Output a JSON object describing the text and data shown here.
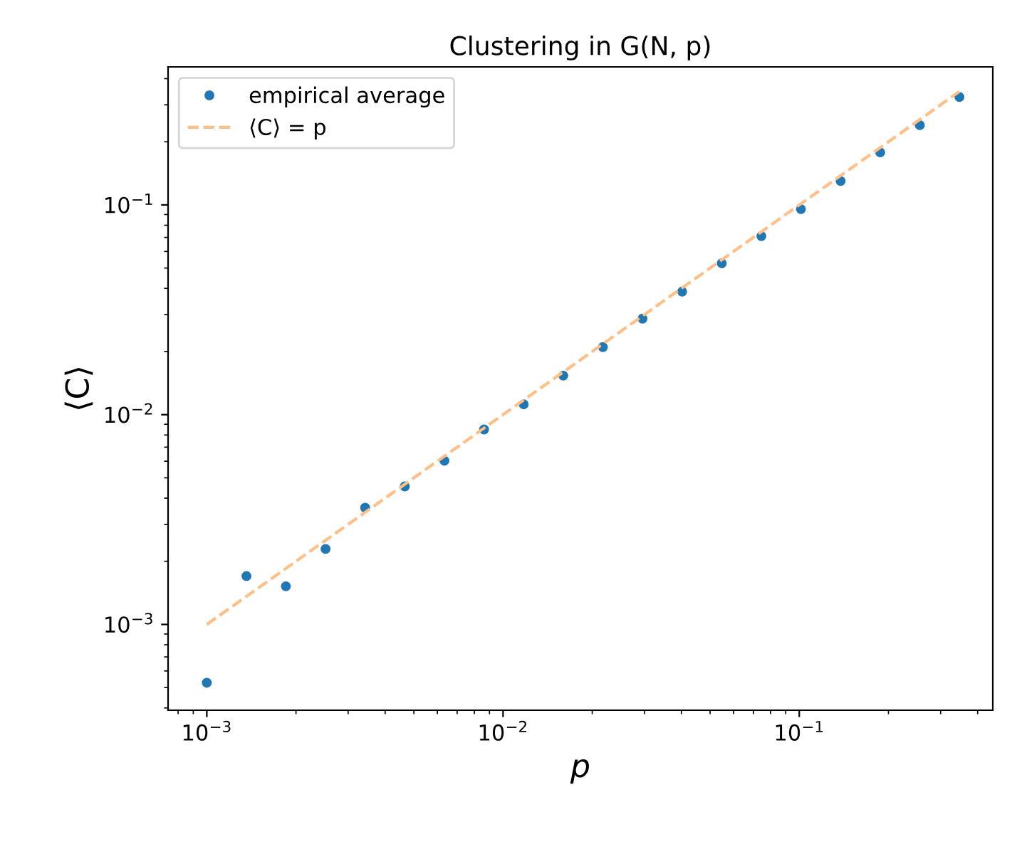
{
  "chart_data": {
    "type": "scatter",
    "title": "Clustering in G(N, p)",
    "xlabel": "p",
    "ylabel": "⟨C⟩",
    "log": "xy",
    "grid": false,
    "legend": "top left",
    "marker": "circle",
    "xlim": [
      0.00074,
      0.45
    ],
    "ylim": [
      0.00039,
      0.455
    ],
    "xticks": [
      {
        "value": 0.001,
        "label": "10$^{−3}$"
      },
      {
        "value": 0.01,
        "label": "10$^{−2}$"
      },
      {
        "value": 0.1,
        "label": "10$^{−1}$"
      }
    ],
    "yticks": [
      {
        "value": 0.001,
        "label": "10$^{−3}$"
      },
      {
        "value": 0.01,
        "label": "10$^{−2}$"
      },
      {
        "value": 0.1,
        "label": "10$^{−1}$"
      }
    ],
    "series": [
      {
        "name": "empirical average",
        "color": "#1f77b4",
        "x": [
          0.001,
          0.001361,
          0.001849,
          0.002517,
          0.003424,
          0.004659,
          0.006339,
          0.008626,
          0.01174,
          0.01597,
          0.02173,
          0.02957,
          0.04023,
          0.05474,
          0.07448,
          0.1013,
          0.1379,
          0.1876,
          0.2552,
          0.3472
        ],
        "values": [
          0.000527,
          0.0017,
          0.00152,
          0.00229,
          0.0036,
          0.00455,
          0.00603,
          0.0085,
          0.0112,
          0.01535,
          0.021,
          0.0287,
          0.0386,
          0.0527,
          0.071,
          0.0955,
          0.13,
          0.178,
          0.24,
          0.327
        ]
      },
      {
        "name": "⟨C⟩ = p",
        "type": "line",
        "color": "#ffbf86",
        "line_style": "dashed",
        "marker": "none",
        "x": [
          0.001,
          0.3472
        ],
        "values": [
          0.001,
          0.3472
        ]
      }
    ]
  }
}
